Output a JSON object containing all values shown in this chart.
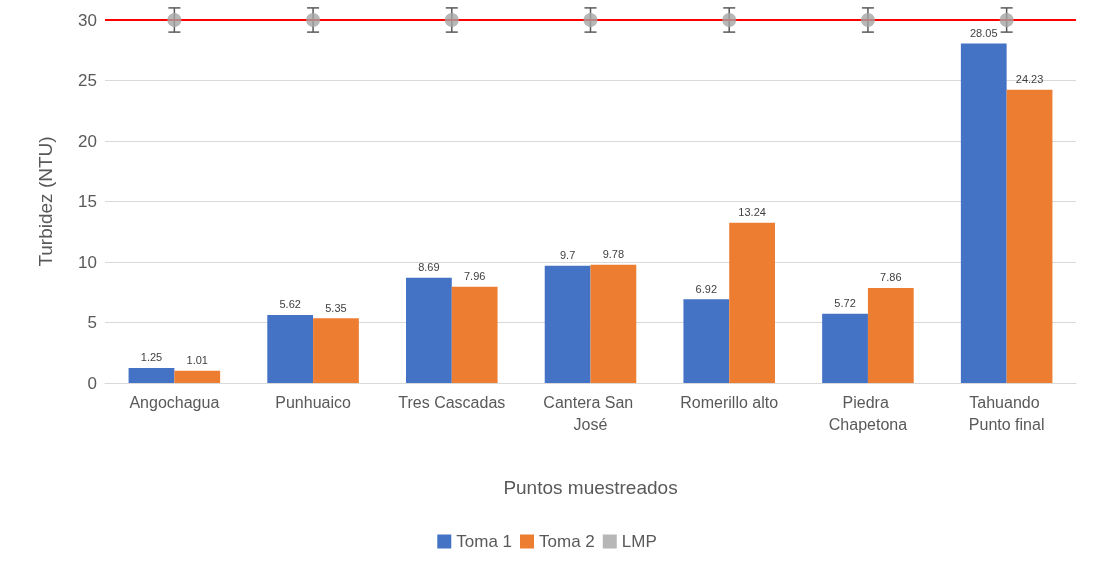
{
  "chart_data": {
    "type": "bar",
    "xlabel": "Puntos muestreados",
    "ylabel": "Turbidez (NTU)",
    "categories": [
      "Angochagua",
      "Punhuaico",
      "Tres Cascadas",
      "Cantera San José",
      "Romerillo alto",
      "Piedra Chapetona",
      "Tahuando Punto final"
    ],
    "series": [
      {
        "name": "Toma 1",
        "color": "#4472c4",
        "values": [
          1.25,
          5.62,
          8.69,
          9.7,
          6.92,
          5.72,
          28.05
        ],
        "value_labels": [
          "1.25",
          "5.62",
          "8.69",
          "9.7",
          "6.92",
          "5.72",
          "28.05"
        ]
      },
      {
        "name": "Toma 2",
        "color": "#ed7d31",
        "values": [
          1.01,
          5.35,
          7.96,
          9.78,
          13.24,
          7.86,
          24.23
        ],
        "value_labels": [
          "1.01",
          "5.35",
          "7.96",
          "9.78",
          "13.24",
          "7.86",
          "24.23"
        ]
      },
      {
        "name": "LMP",
        "type": "scatter",
        "color": "#a5a5a5",
        "marker": "circle",
        "values": [
          30,
          30,
          30,
          30,
          30,
          30,
          30
        ],
        "errors": [
          1,
          1,
          1,
          1,
          1,
          1,
          1
        ]
      }
    ],
    "ref_lines": [
      {
        "axis": "y",
        "value": 30,
        "color": "#ff0000"
      }
    ],
    "ylim": [
      0,
      30
    ],
    "yticks": [
      0,
      5,
      10,
      15,
      20,
      25,
      30
    ],
    "grid": "y",
    "legend": "bottom"
  }
}
